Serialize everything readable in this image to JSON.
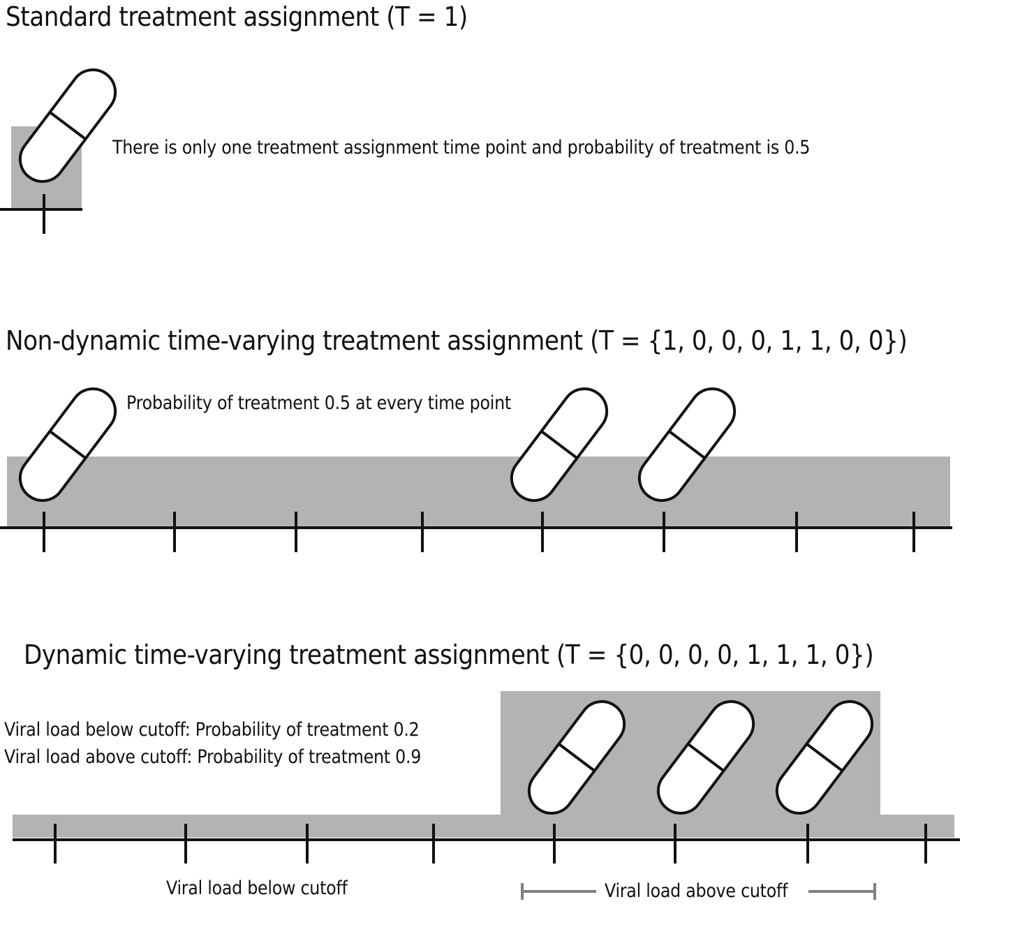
{
  "panels": {
    "standard": {
      "title": "Standard treatment assignment (T = 1)",
      "note": "There is only one treatment assignment time point and probability of treatment is 0.5",
      "assignment": [
        1
      ]
    },
    "nondynamic": {
      "title": "Non-dynamic time-varying treatment assignment (T = {1, 0, 0, 0, 1, 1, 0, 0})",
      "note": "Probability of treatment 0.5 at every time point",
      "assignment": [
        1,
        0,
        0,
        0,
        1,
        1,
        0,
        0
      ],
      "probability": [
        0.5,
        0.5,
        0.5,
        0.5,
        0.5,
        0.5,
        0.5,
        0.5
      ]
    },
    "dynamic": {
      "title": "Dynamic time-varying treatment assignment (T = {0, 0, 0, 0, 1, 1, 1, 0})",
      "note_below": "Viral load below cutoff: Probability of treatment 0.2",
      "note_above": "Viral load above cutoff: Probability of treatment 0.9",
      "assignment": [
        0,
        0,
        0,
        0,
        1,
        1,
        1,
        0
      ],
      "probability": [
        0.2,
        0.2,
        0.2,
        0.2,
        0.9,
        0.9,
        0.9,
        0.2
      ],
      "label_below": "Viral load below cutoff",
      "label_above": "Viral load above cutoff"
    }
  },
  "colors": {
    "shade": "#b3b3b3",
    "line": "#111111",
    "bracket": "#808080",
    "pill_fill": "#ffffff"
  }
}
